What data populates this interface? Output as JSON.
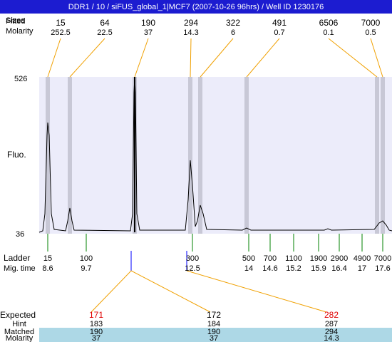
{
  "header": {
    "title": "DDR1 / 10 / siFUS_global_1|MCF7 (2007-10-26 96hrs) / Well ID 1230176"
  },
  "top": {
    "fitted_label": "Fitted",
    "sizes_label": "Sizes",
    "molarity_label": "Molarity",
    "peaks": [
      {
        "size": 15,
        "molarity": 252.5
      },
      {
        "size": 64,
        "molarity": 22.5
      },
      {
        "size": 190,
        "molarity": 37
      },
      {
        "size": 294,
        "molarity": 14.3
      },
      {
        "size": 322,
        "molarity": 6
      },
      {
        "size": 491,
        "molarity": 0.7
      },
      {
        "size": 6506,
        "molarity": 0.1
      },
      {
        "size": 7000,
        "molarity": 0.5
      }
    ]
  },
  "plot": {
    "y_top": 526,
    "y_bottom": 36,
    "y_label": "Fluo."
  },
  "ladder": {
    "label": "Ladder",
    "time_label": "Mig. time",
    "items": [
      {
        "size": 15,
        "time": 8.6
      },
      {
        "size": 100,
        "time": 9.7
      },
      {
        "size": 300,
        "time": 12.5
      },
      {
        "size": 500,
        "time": 14
      },
      {
        "size": 700,
        "time": 14.6
      },
      {
        "size": 1100,
        "time": 15.2
      },
      {
        "size": 1900,
        "time": 15.9
      },
      {
        "size": 2900,
        "time": 16.4
      },
      {
        "size": 4900,
        "time": 17
      },
      {
        "size": 7000,
        "time": 17.6
      }
    ]
  },
  "table": {
    "row_labels": [
      "Expected",
      "Hint",
      "Matched",
      "Molarity"
    ],
    "columns": [
      {
        "expected": 171,
        "hint": 183,
        "matched": 190,
        "molarity": 37
      },
      {
        "expected": 172,
        "hint": 184,
        "matched": 190,
        "molarity": 37
      },
      {
        "expected": 282,
        "hint": 287,
        "matched": 294,
        "molarity": 14.3
      }
    ]
  }
}
